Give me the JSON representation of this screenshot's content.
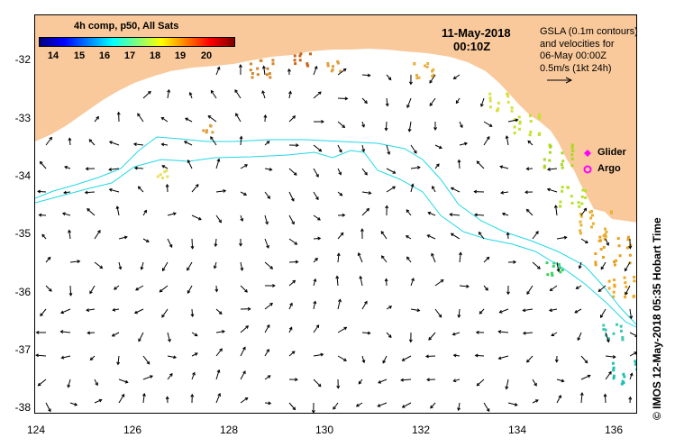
{
  "map": {
    "title_date": "11-May-2018",
    "title_time": "00:10Z",
    "info_lines": [
      "GSLA (0.1m contours)",
      "and velocities for",
      "06-May 00:00Z",
      "0.5m/s (1kt 24h)"
    ],
    "colorbar": {
      "title": "4h comp, p50, All Sats",
      "ticks": [
        "14",
        "15",
        "16",
        "17",
        "18",
        "19",
        "20"
      ],
      "colors": [
        "#00007f",
        "#0000ff",
        "#007fff",
        "#00ffff",
        "#7fff7f",
        "#ffff00",
        "#ff7f00",
        "#ff0000",
        "#7f0000"
      ]
    },
    "legend": [
      {
        "label": "Glider",
        "symbol": "diamond-icon",
        "color": "#ff00ff"
      },
      {
        "label": "Argo",
        "symbol": "circle-icon",
        "color": "#ff00ff"
      }
    ],
    "x_axis": {
      "ticks": [
        "124",
        "126",
        "128",
        "130",
        "132",
        "134",
        "136"
      ],
      "range": [
        124,
        136.5
      ]
    },
    "y_axis": {
      "ticks": [
        "-32",
        "-33",
        "-34",
        "-35",
        "-36",
        "-37",
        "-38"
      ],
      "range": [
        -38.15,
        -31.35
      ]
    },
    "credit": "©  IMOS 12-May-2018 05:35 Hobart Time",
    "colors": {
      "land": "#f9c99b",
      "contour": "#22d8e6",
      "arrow": "#000000"
    }
  }
}
